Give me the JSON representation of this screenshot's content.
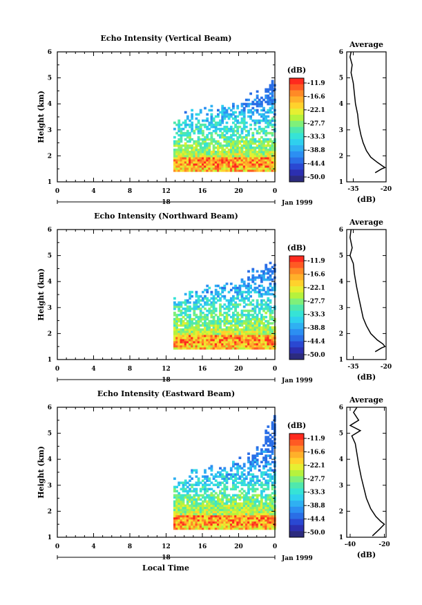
{
  "date_label": "Jan 1999",
  "x_axis_label": "Local Time",
  "colorbar_unit": "(dB)",
  "average_title": "Average",
  "average_xlabel": "(dB)",
  "colorbar": {
    "ticks": [
      "-11.9",
      "-16.6",
      "-22.1",
      "-27.7",
      "-33.3",
      "-38.8",
      "-44.4",
      "-50.0"
    ],
    "colors": [
      "#ff2a1e",
      "#ff5a23",
      "#ff8a26",
      "#ffb02a",
      "#ffd22c",
      "#e6ef32",
      "#b6f23d",
      "#7ff07a",
      "#4fe8ad",
      "#36e3d6",
      "#2fd0ee",
      "#2fb0f2",
      "#2c8ff2",
      "#2a6ee6",
      "#2a48d2",
      "#2c2fb0",
      "#2c2b7e"
    ]
  },
  "chart_data": [
    {
      "type": "heatmap",
      "title": "Echo Intensity (Vertical Beam)",
      "ylabel": "Height (km)",
      "y_ticks": [
        "1",
        "2",
        "3",
        "4",
        "5",
        "6"
      ],
      "x_ticks": [
        "0",
        "4",
        "8",
        "12",
        "16",
        "20",
        "0"
      ],
      "date_ticks": [
        "18"
      ],
      "ylim": [
        1,
        6
      ],
      "xlim": [
        0,
        24
      ],
      "echo_start_hour": 12.8,
      "echo_top_km": [
        3.4,
        3.6,
        3.7,
        3.9,
        4.3,
        4.8
      ],
      "echo_core_km": [
        1.4,
        1.9
      ],
      "average_profile": {
        "x_ticks": [
          "-35",
          "-20"
        ],
        "xlim": [
          -38,
          -20
        ],
        "ylim": [
          1,
          6
        ],
        "points": [
          [
            -25,
            1.35
          ],
          [
            -22,
            1.5
          ],
          [
            -20.5,
            1.55
          ],
          [
            -21.5,
            1.6
          ],
          [
            -24,
            1.75
          ],
          [
            -27,
            1.95
          ],
          [
            -29,
            2.2
          ],
          [
            -30.5,
            2.5
          ],
          [
            -31.5,
            2.8
          ],
          [
            -32.5,
            3.2
          ],
          [
            -33,
            3.6
          ],
          [
            -34,
            4
          ],
          [
            -34.5,
            4.4
          ],
          [
            -35,
            4.8
          ],
          [
            -36,
            5.2
          ],
          [
            -35.5,
            5.5
          ],
          [
            -36.5,
            5.8
          ],
          [
            -36,
            6
          ]
        ]
      }
    },
    {
      "type": "heatmap",
      "title": "Echo Intensity (Northward Beam)",
      "ylabel": "Height (km)",
      "y_ticks": [
        "1",
        "2",
        "3",
        "4",
        "5",
        "6"
      ],
      "x_ticks": [
        "0",
        "4",
        "8",
        "12",
        "16",
        "20",
        "0"
      ],
      "date_ticks": [
        "18"
      ],
      "ylim": [
        1,
        6
      ],
      "xlim": [
        0,
        24
      ],
      "echo_start_hour": 12.8,
      "echo_top_km": [
        3.3,
        3.5,
        3.7,
        3.9,
        4.4,
        4.7
      ],
      "echo_core_km": [
        1.4,
        1.9
      ],
      "average_profile": {
        "x_ticks": [
          "-35",
          "-20"
        ],
        "xlim": [
          -38,
          -20
        ],
        "ylim": [
          1,
          6
        ],
        "points": [
          [
            -25,
            1.3
          ],
          [
            -22,
            1.45
          ],
          [
            -20.5,
            1.5
          ],
          [
            -21.5,
            1.6
          ],
          [
            -24,
            1.75
          ],
          [
            -27,
            2
          ],
          [
            -29,
            2.3
          ],
          [
            -30.5,
            2.6
          ],
          [
            -31.5,
            3
          ],
          [
            -32.5,
            3.4
          ],
          [
            -33.5,
            3.8
          ],
          [
            -34.5,
            4.3
          ],
          [
            -35,
            4.7
          ],
          [
            -36.5,
            5
          ],
          [
            -35.5,
            5.3
          ],
          [
            -36.5,
            5.7
          ],
          [
            -36,
            6
          ]
        ]
      }
    },
    {
      "type": "heatmap",
      "title": "Echo Intensity (Eastward Beam)",
      "ylabel": "Height (km)",
      "y_ticks": [
        "1",
        "2",
        "3",
        "4",
        "5",
        "6"
      ],
      "x_ticks": [
        "0",
        "4",
        "8",
        "12",
        "16",
        "20",
        "0"
      ],
      "date_ticks": [
        "18"
      ],
      "ylim": [
        1,
        6
      ],
      "xlim": [
        0,
        24
      ],
      "echo_start_hour": 12.8,
      "echo_top_km": [
        3.1,
        3.4,
        3.6,
        3.8,
        4.2,
        5.6
      ],
      "echo_core_km": [
        1.3,
        1.8
      ],
      "average_profile": {
        "x_ticks": [
          "-40",
          "-20"
        ],
        "xlim": [
          -42,
          -19
        ],
        "ylim": [
          1,
          6
        ],
        "points": [
          [
            -27,
            1.05
          ],
          [
            -23,
            1.3
          ],
          [
            -20,
            1.5
          ],
          [
            -22,
            1.6
          ],
          [
            -25,
            1.8
          ],
          [
            -28,
            2.1
          ],
          [
            -30.5,
            2.5
          ],
          [
            -32,
            2.9
          ],
          [
            -33.5,
            3.3
          ],
          [
            -35,
            3.8
          ],
          [
            -36,
            4.2
          ],
          [
            -37,
            4.6
          ],
          [
            -39,
            4.9
          ],
          [
            -34,
            5.1
          ],
          [
            -40,
            5.3
          ],
          [
            -35,
            5.5
          ],
          [
            -38,
            5.8
          ],
          [
            -36,
            6
          ]
        ]
      }
    }
  ]
}
